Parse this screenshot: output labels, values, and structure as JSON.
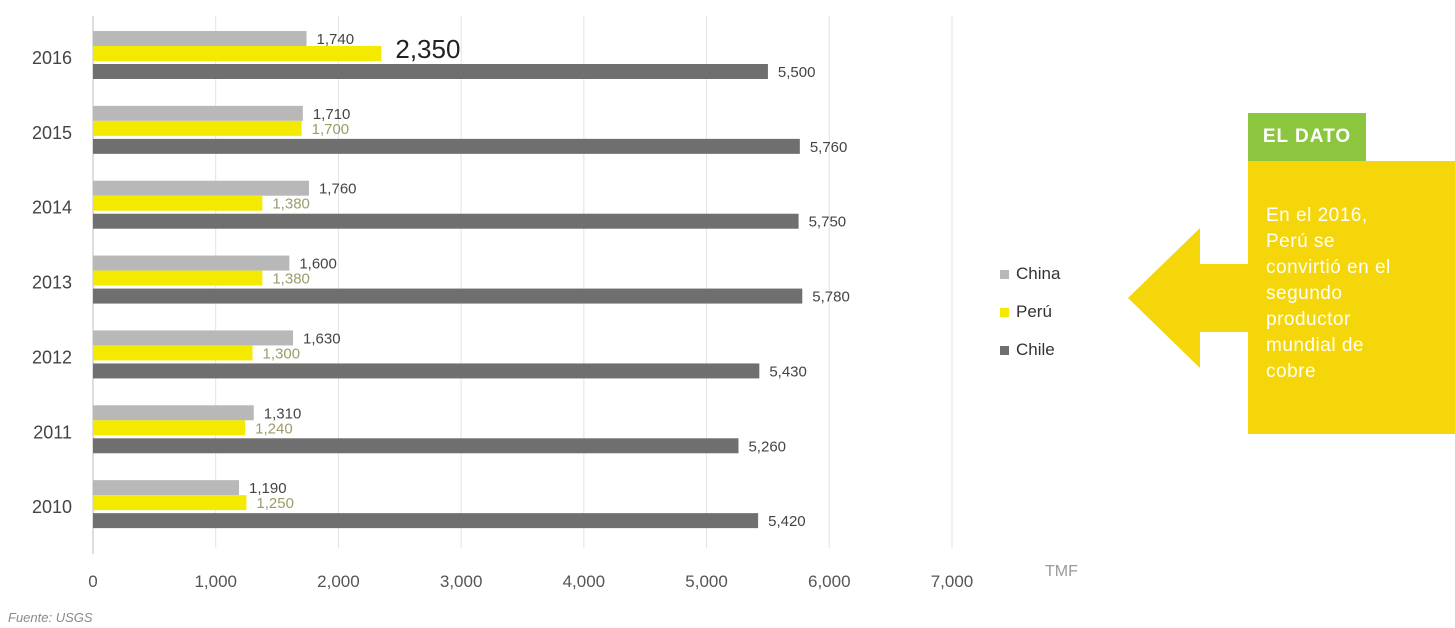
{
  "chart_data": {
    "type": "bar",
    "orientation": "horizontal",
    "categories": [
      "2016",
      "2015",
      "2014",
      "2013",
      "2012",
      "2011",
      "2010"
    ],
    "series": [
      {
        "name": "China",
        "color": "#b8b8b8",
        "values": [
          1740,
          1710,
          1760,
          1600,
          1630,
          1310,
          1190
        ],
        "labels": [
          "1,740",
          "1,710",
          "1,760",
          "1,600",
          "1,630",
          "1,310",
          "1,190"
        ]
      },
      {
        "name": "Perú",
        "color": "#f3ea00",
        "values": [
          2350,
          1700,
          1380,
          1380,
          1300,
          1240,
          1250
        ],
        "labels": [
          "2,350",
          "1,700",
          "1,380",
          "1,380",
          "1,300",
          "1,240",
          "1,250"
        ]
      },
      {
        "name": "Chile",
        "color": "#6f6f6f",
        "values": [
          5500,
          5760,
          5750,
          5780,
          5430,
          5260,
          5420
        ],
        "labels": [
          "5,500",
          "5,760",
          "5,750",
          "5,780",
          "5,430",
          "5,260",
          "5,420"
        ]
      }
    ],
    "xlim": [
      0,
      7000
    ],
    "xticks": [
      0,
      1000,
      2000,
      3000,
      4000,
      5000,
      6000,
      7000
    ],
    "xtick_labels": [
      "0",
      "1,000",
      "2,000",
      "3,000",
      "4,000",
      "5,000",
      "6,000",
      "7,000"
    ],
    "xlabel": "TMF",
    "grid": "vertical",
    "legend_position": "right"
  },
  "unit_label": "TMF",
  "source": "Fuente: USGS",
  "callout": {
    "tag": "EL DATO",
    "text": "En el 2016, Perú se convirtió en el segundo productor mundial de cobre",
    "tag_color": "#8cc63f",
    "box_color": "#f5d60a"
  }
}
